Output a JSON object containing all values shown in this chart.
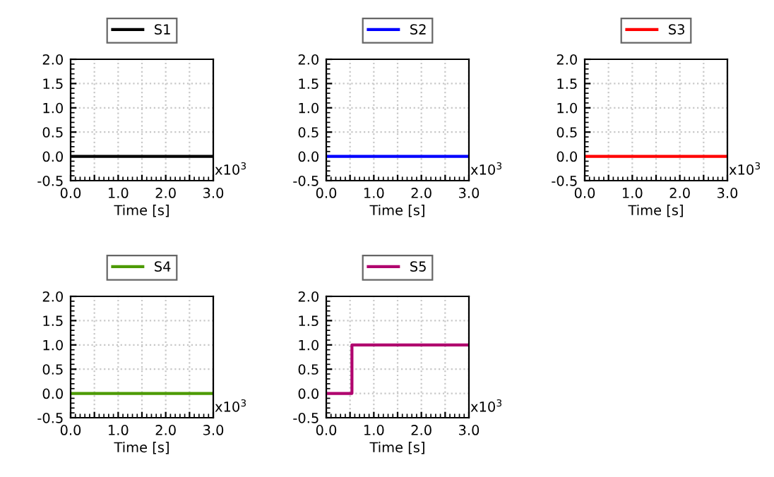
{
  "chart_data": [
    {
      "type": "line",
      "x": [
        0,
        3
      ],
      "series": [
        {
          "name": "S1",
          "color": "#000000",
          "values": [
            0,
            0
          ]
        }
      ],
      "xlabel": "Time [s]",
      "xlim": [
        0,
        3
      ],
      "ylim": [
        -0.5,
        2.0
      ],
      "xticks": [
        {
          "value": 0,
          "label": "0.0"
        },
        {
          "value": 0.5,
          "label": null
        },
        {
          "value": 1,
          "label": "1.0"
        },
        {
          "value": 1.5,
          "label": null
        },
        {
          "value": 2,
          "label": "2.0"
        },
        {
          "value": 2.5,
          "label": null
        },
        {
          "value": 3,
          "label": "3.0"
        }
      ],
      "yticks": [
        {
          "value": -0.5,
          "label": "-0.5"
        },
        {
          "value": 0,
          "label": "0.0"
        },
        {
          "value": 0.5,
          "label": "0.5"
        },
        {
          "value": 1.0,
          "label": "1.0"
        },
        {
          "value": 1.5,
          "label": "1.5"
        },
        {
          "value": 2.0,
          "label": "2.0"
        }
      ],
      "annotations": [
        "x10$^{3}$"
      ],
      "grid": true,
      "legend": "top"
    },
    {
      "type": "line",
      "x": [
        0,
        3
      ],
      "series": [
        {
          "name": "S2",
          "color": "#0000ff",
          "values": [
            0,
            0
          ]
        }
      ],
      "xlabel": "Time [s]",
      "xlim": [
        0,
        3
      ],
      "ylim": [
        -0.5,
        2.0
      ],
      "xticks": [
        {
          "value": 0,
          "label": "0.0"
        },
        {
          "value": 0.5,
          "label": null
        },
        {
          "value": 1,
          "label": "1.0"
        },
        {
          "value": 1.5,
          "label": null
        },
        {
          "value": 2,
          "label": "2.0"
        },
        {
          "value": 2.5,
          "label": null
        },
        {
          "value": 3,
          "label": "3.0"
        }
      ],
      "yticks": [
        {
          "value": -0.5,
          "label": "-0.5"
        },
        {
          "value": 0,
          "label": "0.0"
        },
        {
          "value": 0.5,
          "label": "0.5"
        },
        {
          "value": 1.0,
          "label": "1.0"
        },
        {
          "value": 1.5,
          "label": "1.5"
        },
        {
          "value": 2.0,
          "label": "2.0"
        }
      ],
      "annotations": [
        "x10$^{3}$"
      ],
      "grid": true,
      "legend": "top"
    },
    {
      "type": "line",
      "x": [
        0,
        3
      ],
      "series": [
        {
          "name": "S3",
          "color": "#ff0000",
          "values": [
            0,
            0
          ]
        }
      ],
      "xlabel": "Time [s]",
      "xlim": [
        0,
        3
      ],
      "ylim": [
        -0.5,
        2.0
      ],
      "xticks": [
        {
          "value": 0,
          "label": "0.0"
        },
        {
          "value": 0.5,
          "label": null
        },
        {
          "value": 1,
          "label": "1.0"
        },
        {
          "value": 1.5,
          "label": null
        },
        {
          "value": 2,
          "label": "2.0"
        },
        {
          "value": 2.5,
          "label": null
        },
        {
          "value": 3,
          "label": "3.0"
        }
      ],
      "yticks": [
        {
          "value": -0.5,
          "label": "-0.5"
        },
        {
          "value": 0,
          "label": "0.0"
        },
        {
          "value": 0.5,
          "label": "0.5"
        },
        {
          "value": 1.0,
          "label": "1.0"
        },
        {
          "value": 1.5,
          "label": "1.5"
        },
        {
          "value": 2.0,
          "label": "2.0"
        }
      ],
      "annotations": [
        "x10$^{3}$"
      ],
      "grid": true,
      "legend": "top"
    },
    {
      "type": "line",
      "x": [
        0,
        3
      ],
      "series": [
        {
          "name": "S4",
          "color": "#4c9a00",
          "values": [
            0,
            0
          ]
        }
      ],
      "xlabel": "Time [s]",
      "xlim": [
        0,
        3
      ],
      "ylim": [
        -0.5,
        2.0
      ],
      "xticks": [
        {
          "value": 0,
          "label": "0.0"
        },
        {
          "value": 0.5,
          "label": null
        },
        {
          "value": 1,
          "label": "1.0"
        },
        {
          "value": 1.5,
          "label": null
        },
        {
          "value": 2,
          "label": "2.0"
        },
        {
          "value": 2.5,
          "label": null
        },
        {
          "value": 3,
          "label": "3.0"
        }
      ],
      "yticks": [
        {
          "value": -0.5,
          "label": "-0.5"
        },
        {
          "value": 0,
          "label": "0.0"
        },
        {
          "value": 0.5,
          "label": "0.5"
        },
        {
          "value": 1.0,
          "label": "1.0"
        },
        {
          "value": 1.5,
          "label": "1.5"
        },
        {
          "value": 2.0,
          "label": "2.0"
        }
      ],
      "annotations": [
        "x10$^{3}$"
      ],
      "grid": true,
      "legend": "top"
    },
    {
      "type": "step",
      "x": [
        0,
        0.54,
        3
      ],
      "series": [
        {
          "name": "S5",
          "color": "#b0006e",
          "values": [
            0,
            1,
            1
          ]
        }
      ],
      "xlabel": "Time [s]",
      "xlim": [
        0,
        3
      ],
      "ylim": [
        -0.5,
        2.0
      ],
      "xticks": [
        {
          "value": 0,
          "label": "0.0"
        },
        {
          "value": 0.5,
          "label": null
        },
        {
          "value": 1,
          "label": "1.0"
        },
        {
          "value": 1.5,
          "label": null
        },
        {
          "value": 2,
          "label": "2.0"
        },
        {
          "value": 2.5,
          "label": null
        },
        {
          "value": 3,
          "label": "3.0"
        }
      ],
      "yticks": [
        {
          "value": -0.5,
          "label": "-0.5"
        },
        {
          "value": 0,
          "label": "0.0"
        },
        {
          "value": 0.5,
          "label": "0.5"
        },
        {
          "value": 1.0,
          "label": "1.0"
        },
        {
          "value": 1.5,
          "label": "1.5"
        },
        {
          "value": 2.0,
          "label": "2.0"
        }
      ],
      "annotations": [
        "x10$^{3}$"
      ],
      "grid": true,
      "legend": "top"
    }
  ]
}
